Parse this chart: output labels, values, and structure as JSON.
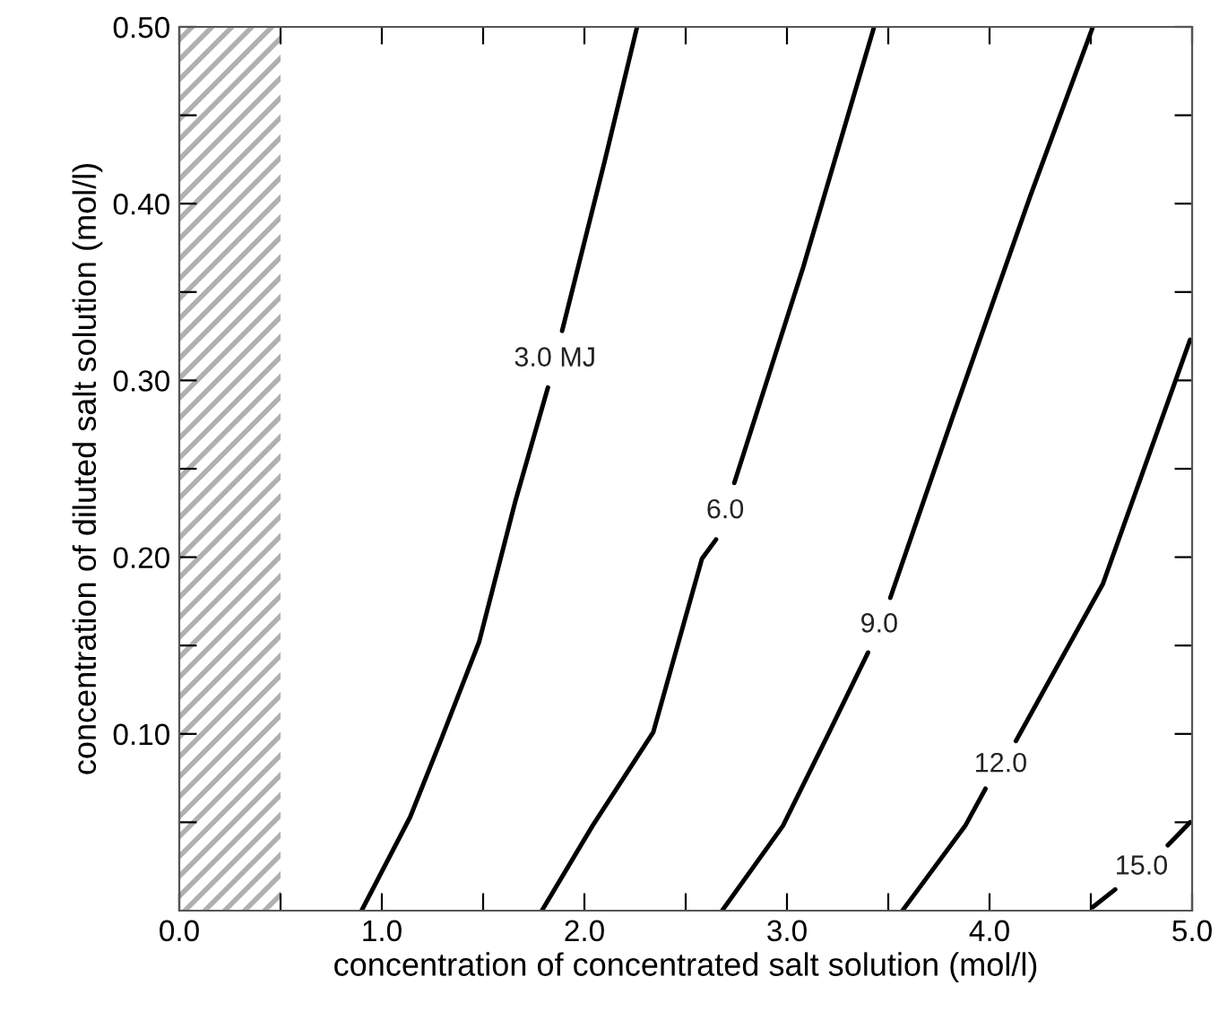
{
  "chart_data": {
    "type": "line",
    "xlabel": "concentration of concentrated salt solution (mol/l)",
    "ylabel": "concentration of diluted salt solution (mol/l)",
    "xlim": [
      0,
      5
    ],
    "ylim": [
      0,
      0.5
    ],
    "xticks": [
      {
        "value": 0,
        "label": "0.0"
      },
      {
        "value": 0.5,
        "label": null
      },
      {
        "value": 1,
        "label": "1.0"
      },
      {
        "value": 1.5,
        "label": null
      },
      {
        "value": 2,
        "label": "2.0"
      },
      {
        "value": 2.5,
        "label": null
      },
      {
        "value": 3,
        "label": "3.0"
      },
      {
        "value": 3.5,
        "label": null
      },
      {
        "value": 4,
        "label": "4.0"
      },
      {
        "value": 4.5,
        "label": null
      },
      {
        "value": 5,
        "label": "5.0"
      }
    ],
    "yticks": [
      {
        "value": 0.05,
        "label": null
      },
      {
        "value": 0.1,
        "label": "0.10"
      },
      {
        "value": 0.15,
        "label": null
      },
      {
        "value": 0.2,
        "label": "0.20"
      },
      {
        "value": 0.25,
        "label": null
      },
      {
        "value": 0.3,
        "label": "0.30"
      },
      {
        "value": 0.35,
        "label": null
      },
      {
        "value": 0.4,
        "label": "0.40"
      },
      {
        "value": 0.45,
        "label": null
      },
      {
        "value": 0.5,
        "label": "0.50"
      }
    ],
    "grid": false,
    "legend": false,
    "marker": "none",
    "line_style": "solid",
    "series": [
      {
        "name": "3.0 MJ",
        "color": "#000000",
        "x": [
          0.9,
          1.14,
          1.29,
          1.48,
          1.66,
          1.82,
          1.85,
          1.89,
          2.1,
          2.26
        ],
        "values": [
          0.0,
          0.053,
          0.096,
          0.152,
          0.232,
          0.296,
          null,
          0.328,
          0.424,
          0.5
        ]
      },
      {
        "name": "6.0",
        "color": "#000000",
        "x": [
          1.79,
          2.04,
          2.34,
          2.58,
          2.65,
          2.7,
          2.74,
          3.08,
          3.43
        ],
        "values": [
          0.0,
          0.048,
          0.101,
          0.199,
          0.21,
          null,
          0.242,
          0.364,
          0.5
        ]
      },
      {
        "name": "9.0",
        "color": "#000000",
        "x": [
          2.68,
          2.98,
          3.2,
          3.4,
          3.45,
          3.51,
          3.82,
          4.2,
          4.51
        ],
        "values": [
          0.0,
          0.048,
          0.099,
          0.146,
          null,
          0.177,
          0.28,
          0.404,
          0.5
        ]
      },
      {
        "name": "12.0",
        "color": "#000000",
        "x": [
          3.57,
          3.88,
          3.98,
          4.05,
          4.13,
          4.56,
          4.99
        ],
        "values": [
          0.0,
          0.048,
          0.069,
          null,
          0.096,
          0.185,
          0.323
        ]
      },
      {
        "name": "15.0",
        "color": "#000000",
        "x": [
          4.51,
          4.62,
          4.75,
          4.88,
          4.99
        ],
        "values": [
          0.002,
          0.012,
          null,
          0.037,
          0.05
        ]
      }
    ],
    "bands": [
      {
        "axis": "x",
        "from": 0,
        "to": 0.5,
        "color": "#b0b0b0"
      }
    ]
  }
}
